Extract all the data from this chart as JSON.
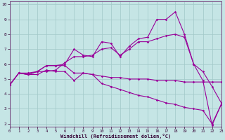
{
  "xlabel": "Windchill (Refroidissement éolien,°C)",
  "bg_color": "#c5e5e5",
  "line_color": "#990099",
  "grid_color": "#a0c8c8",
  "xlim": [
    0,
    23
  ],
  "ylim": [
    1.8,
    10.2
  ],
  "xticks": [
    0,
    1,
    2,
    3,
    4,
    5,
    6,
    7,
    8,
    9,
    10,
    11,
    12,
    13,
    14,
    15,
    16,
    17,
    18,
    19,
    20,
    21,
    22,
    23
  ],
  "yticks": [
    2,
    3,
    4,
    5,
    6,
    7,
    8,
    9,
    10
  ],
  "lines": [
    {
      "x": [
        0,
        1,
        2,
        3,
        4,
        5,
        6,
        7,
        8,
        9,
        10,
        11,
        12,
        13,
        14,
        15,
        16,
        17,
        18,
        19,
        20,
        21,
        22,
        23
      ],
      "y": [
        4.6,
        5.4,
        5.3,
        5.3,
        5.6,
        5.5,
        5.5,
        4.9,
        5.4,
        5.3,
        5.2,
        5.1,
        5.1,
        5.0,
        5.0,
        5.0,
        4.9,
        4.9,
        4.9,
        4.8,
        4.8,
        4.8,
        4.8,
        4.8
      ]
    },
    {
      "x": [
        0,
        1,
        2,
        3,
        4,
        5,
        6,
        7,
        8,
        9,
        10,
        11,
        12,
        13,
        14,
        15,
        16,
        17,
        18,
        19,
        20,
        21,
        22,
        23
      ],
      "y": [
        4.6,
        5.4,
        5.3,
        5.5,
        5.9,
        5.9,
        6.0,
        7.0,
        6.6,
        6.5,
        7.5,
        7.4,
        6.5,
        7.2,
        7.7,
        7.8,
        9.0,
        9.0,
        9.5,
        8.0,
        6.0,
        4.9,
        1.9,
        3.3
      ]
    },
    {
      "x": [
        0,
        1,
        2,
        3,
        4,
        5,
        6,
        7,
        8,
        9,
        10,
        11,
        12,
        13,
        14,
        15,
        16,
        17,
        18,
        19,
        20,
        21,
        22,
        23
      ],
      "y": [
        4.6,
        5.4,
        5.4,
        5.5,
        5.5,
        5.6,
        6.1,
        6.5,
        6.5,
        6.6,
        7.0,
        7.1,
        6.6,
        7.0,
        7.5,
        7.5,
        7.7,
        7.9,
        8.0,
        7.8,
        6.0,
        5.5,
        4.5,
        3.4
      ]
    },
    {
      "x": [
        0,
        1,
        2,
        3,
        4,
        5,
        6,
        7,
        8,
        9,
        10,
        11,
        12,
        13,
        14,
        15,
        16,
        17,
        18,
        19,
        20,
        21,
        22,
        23
      ],
      "y": [
        4.6,
        5.4,
        5.3,
        5.5,
        5.9,
        5.9,
        5.9,
        5.4,
        5.4,
        5.3,
        4.7,
        4.5,
        4.3,
        4.1,
        3.9,
        3.8,
        3.6,
        3.4,
        3.3,
        3.1,
        3.0,
        2.9,
        2.0,
        3.3
      ]
    }
  ]
}
